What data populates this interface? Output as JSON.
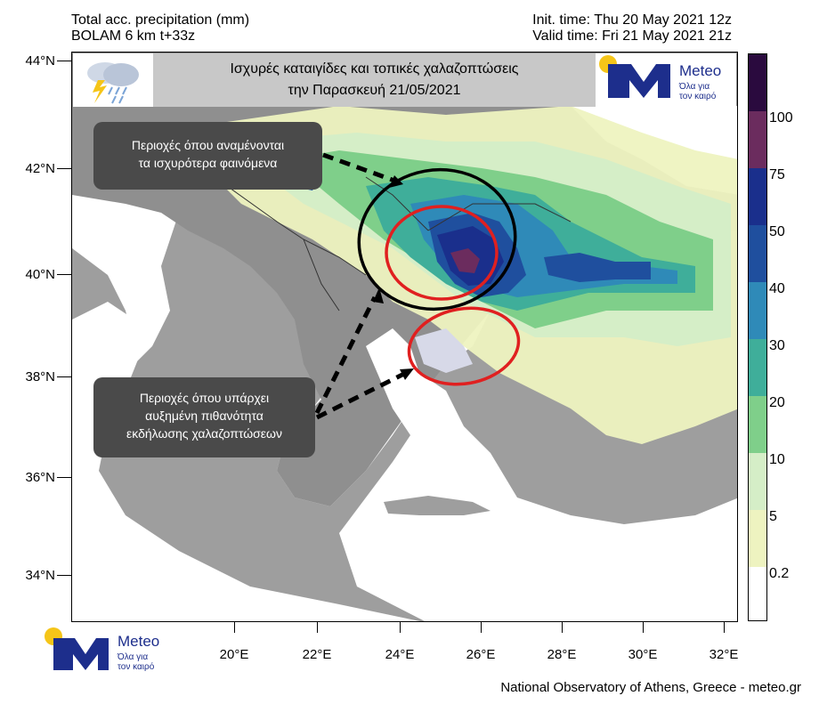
{
  "header": {
    "left_line1": "Total acc. precipitation (mm)",
    "left_line2": "BOLAM 6 km t+33z",
    "right_line1": "Init. time: Thu 20 May 2021 12z",
    "right_line2": "Valid time: Fri 21 May 2021 21z"
  },
  "banner": {
    "line1": "Ισχυρές καταιγίδες  και τοπικές χαλαζοπτώσεις",
    "line2": "την Παρασκευή 21/05/2021"
  },
  "callouts": {
    "strong_line1": "Περιοχές όπου αναμένονται",
    "strong_line2": "τα ισχυρότερα φαινόμενα",
    "hail_line1": "Περιοχές όπου υπάρχει",
    "hail_line2": "αυξημένη πιθανότητα",
    "hail_line3": "εκδήλωσης χαλαζοπτώσεων"
  },
  "axes": {
    "lat_labels": [
      "44°N",
      "42°N",
      "40°N",
      "38°N",
      "36°N",
      "34°N"
    ],
    "lon_labels": [
      "20°E",
      "22°E",
      "24°E",
      "26°E",
      "28°E",
      "30°E",
      "32°E"
    ]
  },
  "colorbar": {
    "labels": [
      "100",
      "75",
      "50",
      "40",
      "30",
      "20",
      "10",
      "5",
      "0.2"
    ],
    "colors": [
      "#2a0a3e",
      "#6b2c5e",
      "#1a2f8c",
      "#1f4f9e",
      "#2f8ab8",
      "#3fae9a",
      "#7fcf8a",
      "#d5eec7",
      "#eef3c0",
      "#ffffff"
    ]
  },
  "logo": {
    "name": "Meteo",
    "tagline_line1": "Όλα για",
    "tagline_line2": "τον καιρό"
  },
  "credit": "National Observatory of Athens, Greece - meteo.gr"
}
